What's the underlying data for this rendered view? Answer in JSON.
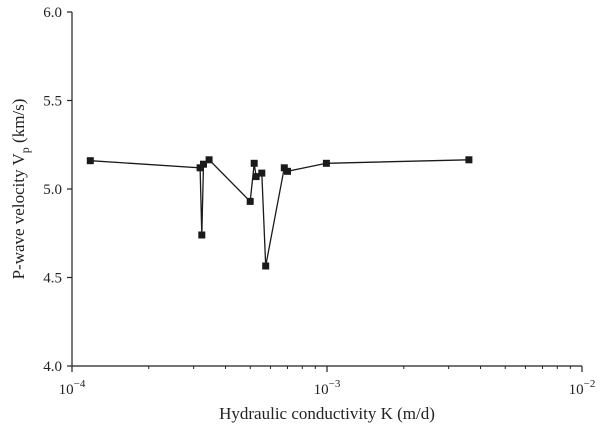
{
  "chart_data": {
    "type": "scatter",
    "title": "",
    "xlabel": "Hydraulic conductivity K (m/d)",
    "ylabel_main": "P-wave velocity V",
    "ylabel_sub": "p",
    "ylabel_unit": " (km/s)",
    "x_scale": "log",
    "xlim": [
      0.0001,
      0.01
    ],
    "ylim": [
      4.0,
      6.0
    ],
    "x_ticks": [
      {
        "base": "10",
        "exp": "−4",
        "value": 0.0001
      },
      {
        "base": "10",
        "exp": "−3",
        "value": 0.001
      },
      {
        "base": "10",
        "exp": "−2",
        "value": 0.01
      }
    ],
    "y_ticks": [
      {
        "label": "4.0",
        "value": 4.0
      },
      {
        "label": "4.5",
        "value": 4.5
      },
      {
        "label": "5.0",
        "value": 5.0
      },
      {
        "label": "5.5",
        "value": 5.5
      },
      {
        "label": "6.0",
        "value": 6.0
      }
    ],
    "grid": false,
    "marker": "square",
    "line_connected": true,
    "color": "#1a1a1a",
    "series": [
      {
        "points": [
          {
            "x": 0.000118,
            "y": 5.16
          },
          {
            "x": 0.000318,
            "y": 5.12
          },
          {
            "x": 0.000323,
            "y": 4.74
          },
          {
            "x": 0.000328,
            "y": 5.14
          },
          {
            "x": 0.000345,
            "y": 5.165
          },
          {
            "x": 0.0005,
            "y": 4.93
          },
          {
            "x": 0.000518,
            "y": 5.145
          },
          {
            "x": 0.000527,
            "y": 5.07
          },
          {
            "x": 0.000555,
            "y": 5.09
          },
          {
            "x": 0.000575,
            "y": 4.565
          },
          {
            "x": 0.00068,
            "y": 5.12
          },
          {
            "x": 0.0007,
            "y": 5.1
          },
          {
            "x": 0.000995,
            "y": 5.145
          },
          {
            "x": 0.0036,
            "y": 5.165
          }
        ]
      }
    ]
  }
}
